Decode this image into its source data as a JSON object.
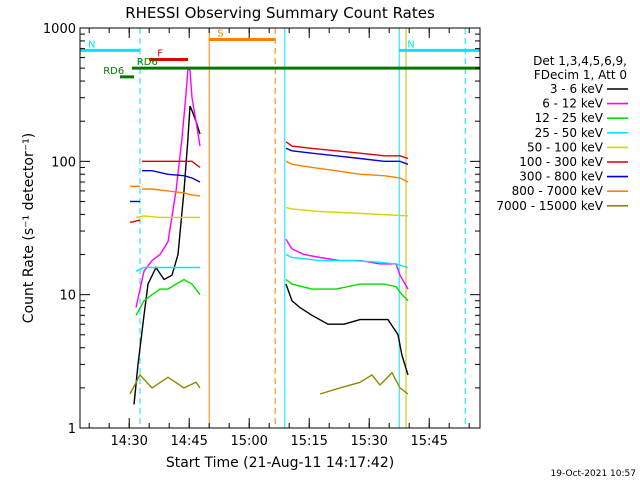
{
  "chart_data": {
    "type": "line",
    "title": "RHESSI Observing Summary Count Rates",
    "xlabel": "Start Time (21-Aug-11 14:17:42)",
    "ylabel": "Count Rate (s⁻¹ detector⁻¹)",
    "y_scale": "log",
    "ylim": [
      1,
      1000
    ],
    "xlim_minutes": [
      0,
      100
    ],
    "x_ticks": [
      {
        "t": 12.3,
        "label": "14:30"
      },
      {
        "t": 27.3,
        "label": "14:45"
      },
      {
        "t": 42.3,
        "label": "15:00"
      },
      {
        "t": 57.3,
        "label": "15:15"
      },
      {
        "t": 72.3,
        "label": "15:30"
      },
      {
        "t": 87.3,
        "label": "15:45"
      }
    ],
    "y_ticks": [
      {
        "v": 1,
        "label": "1"
      },
      {
        "v": 10,
        "label": "10"
      },
      {
        "v": 100,
        "label": "100"
      },
      {
        "v": 1000,
        "label": "1000"
      }
    ],
    "legend": {
      "position": "right",
      "header": [
        "Det 1,3,4,5,6,9,",
        "FDecim 1, Att 0"
      ],
      "entries": [
        {
          "label": "3 - 6 keV",
          "color": "#000000"
        },
        {
          "label": "6 - 12 keV",
          "color": "#ff00ff"
        },
        {
          "label": "12 - 25 keV",
          "color": "#00dd00"
        },
        {
          "label": "25 - 50 keV",
          "color": "#00e5ff"
        },
        {
          "label": "50 - 100 keV",
          "color": "#d4d400"
        },
        {
          "label": "100 - 300 keV",
          "color": "#e00000"
        },
        {
          "label": "300 - 800 keV",
          "color": "#0000e0"
        },
        {
          "label": "800 - 7000 keV",
          "color": "#ff8000"
        },
        {
          "label": "7000 - 15000 keV",
          "color": "#8b8b00"
        }
      ]
    },
    "series_segments": [
      {
        "name": "3 - 6 keV",
        "color": "#000000",
        "segments": [
          [
            [
              13.5,
              1.5
            ],
            [
              14.5,
              3
            ],
            [
              16,
              7
            ],
            [
              17,
              12
            ],
            [
              19,
              16
            ],
            [
              21,
              13
            ],
            [
              23,
              14
            ],
            [
              24.5,
              20
            ],
            [
              26,
              60
            ],
            [
              27,
              150
            ],
            [
              27.5,
              260
            ],
            [
              28,
              240
            ],
            [
              29,
              200
            ],
            [
              30,
              160
            ]
          ],
          [
            [
              51.5,
              12
            ],
            [
              53,
              9
            ],
            [
              55,
              8
            ],
            [
              58,
              7
            ],
            [
              62,
              6
            ],
            [
              66,
              6
            ],
            [
              70,
              6.5
            ],
            [
              74,
              6.5
            ],
            [
              77,
              6.5
            ],
            [
              79.5,
              5
            ],
            [
              80.5,
              3.5
            ],
            [
              82,
              2.5
            ]
          ]
        ]
      },
      {
        "name": "6 - 12 keV",
        "color": "#ff00ff",
        "segments": [
          [
            [
              14,
              8
            ],
            [
              16,
              15
            ],
            [
              18,
              18
            ],
            [
              20,
              20
            ],
            [
              22,
              25
            ],
            [
              24,
              60
            ],
            [
              25.5,
              150
            ],
            [
              26.5,
              320
            ],
            [
              27,
              500
            ],
            [
              27.5,
              480
            ],
            [
              28,
              300
            ],
            [
              29,
              200
            ],
            [
              30,
              130
            ]
          ],
          [
            [
              51.5,
              26
            ],
            [
              53,
              22
            ],
            [
              56,
              20
            ],
            [
              60,
              19
            ],
            [
              65,
              18
            ],
            [
              70,
              18
            ],
            [
              75,
              17
            ],
            [
              79,
              17
            ],
            [
              80,
              14
            ],
            [
              82,
              11
            ]
          ]
        ]
      },
      {
        "name": "12 - 25 keV",
        "color": "#00dd00",
        "segments": [
          [
            [
              14,
              7
            ],
            [
              16,
              9
            ],
            [
              18,
              10
            ],
            [
              20,
              11
            ],
            [
              22,
              11
            ],
            [
              24,
              12
            ],
            [
              26,
              13
            ],
            [
              28,
              12
            ],
            [
              30,
              10
            ]
          ],
          [
            [
              51.5,
              13
            ],
            [
              53,
              12
            ],
            [
              58,
              11
            ],
            [
              64,
              11
            ],
            [
              70,
              12
            ],
            [
              76,
              12
            ],
            [
              79,
              11.5
            ],
            [
              80.5,
              10
            ],
            [
              82,
              9
            ]
          ]
        ]
      },
      {
        "name": "25 - 50 keV",
        "color": "#00e5ff",
        "segments": [
          [
            [
              14,
              15
            ],
            [
              16,
              16
            ],
            [
              18,
              16
            ],
            [
              22,
              16
            ],
            [
              26,
              16
            ],
            [
              30,
              16
            ]
          ],
          [
            [
              51.5,
              20
            ],
            [
              53,
              19
            ],
            [
              60,
              18
            ],
            [
              68,
              18
            ],
            [
              75,
              17.5
            ],
            [
              79,
              17
            ],
            [
              82,
              16
            ]
          ]
        ]
      },
      {
        "name": "50 - 100 keV",
        "color": "#d4d400",
        "segments": [
          [
            [
              14,
              38
            ],
            [
              16,
              39
            ],
            [
              20,
              38
            ],
            [
              24,
              38
            ],
            [
              28,
              38
            ],
            [
              30,
              38
            ]
          ],
          [
            [
              51.5,
              45
            ],
            [
              53,
              44
            ],
            [
              60,
              42
            ],
            [
              68,
              41
            ],
            [
              75,
              40
            ],
            [
              82,
              39
            ]
          ]
        ]
      },
      {
        "name": "100 - 300 keV",
        "color": "#e00000",
        "segments": [
          [
            [
              12.5,
              35
            ],
            [
              13,
              35
            ],
            [
              14.5,
              36
            ],
            [
              15,
              36
            ]
          ],
          [
            [
              15.5,
              100
            ],
            [
              18,
              100
            ],
            [
              22,
              100
            ],
            [
              26,
              100
            ],
            [
              28,
              100
            ],
            [
              30,
              90
            ]
          ],
          [
            [
              51.5,
              140
            ],
            [
              53,
              130
            ],
            [
              58,
              125
            ],
            [
              64,
              120
            ],
            [
              70,
              115
            ],
            [
              76,
              110
            ],
            [
              80,
              110
            ],
            [
              82,
              105
            ]
          ]
        ]
      },
      {
        "name": "300 - 800 keV",
        "color": "#0000e0",
        "segments": [
          [
            [
              12.5,
              50
            ],
            [
              13,
              50
            ],
            [
              14.5,
              50
            ],
            [
              15,
              50
            ]
          ],
          [
            [
              15.5,
              85
            ],
            [
              18,
              85
            ],
            [
              22,
              80
            ],
            [
              26,
              78
            ],
            [
              28,
              75
            ],
            [
              30,
              70
            ]
          ],
          [
            [
              51.5,
              125
            ],
            [
              53,
              120
            ],
            [
              58,
              115
            ],
            [
              64,
              110
            ],
            [
              70,
              105
            ],
            [
              76,
              100
            ],
            [
              80,
              100
            ],
            [
              82,
              95
            ]
          ]
        ]
      },
      {
        "name": "800 - 7000 keV",
        "color": "#ff8000",
        "segments": [
          [
            [
              12.5,
              65
            ],
            [
              13,
              65
            ],
            [
              14.5,
              65
            ],
            [
              15,
              65
            ]
          ],
          [
            [
              15.5,
              62
            ],
            [
              18,
              62
            ],
            [
              22,
              60
            ],
            [
              26,
              58
            ],
            [
              28,
              56
            ],
            [
              30,
              55
            ]
          ],
          [
            [
              51.5,
              100
            ],
            [
              53,
              95
            ],
            [
              58,
              90
            ],
            [
              64,
              85
            ],
            [
              70,
              80
            ],
            [
              76,
              78
            ],
            [
              80,
              75
            ],
            [
              82,
              70
            ]
          ]
        ]
      },
      {
        "name": "7000 - 15000 keV",
        "color": "#8b8b00",
        "segments": [
          [
            [
              12.5,
              1.8
            ],
            [
              15,
              2.5
            ],
            [
              18,
              2
            ],
            [
              22,
              2.4
            ],
            [
              26,
              2
            ],
            [
              29,
              2.2
            ],
            [
              30,
              2
            ]
          ],
          [
            [
              60,
              1.8
            ],
            [
              65,
              2
            ],
            [
              70,
              2.2
            ],
            [
              73,
              2.5
            ],
            [
              75,
              2.1
            ],
            [
              78,
              2.6
            ],
            [
              80,
              2
            ],
            [
              82,
              1.8
            ]
          ]
        ]
      }
    ],
    "mode_bars": [
      {
        "label": "N",
        "color": "#00e5ff",
        "t0": 0,
        "t1": 15.0,
        "value": 680
      },
      {
        "label": "N",
        "color": "#00e5ff",
        "t0": 79.8,
        "t1": 100,
        "value": 680
      },
      {
        "label": "F",
        "color": "#e00000",
        "t0": 17.3,
        "t1": 27.0,
        "value": 580
      },
      {
        "label": "S",
        "color": "#ff8000",
        "t0": 32.3,
        "t1": 48.8,
        "value": 820
      },
      {
        "label": "RD6",
        "color": "#007700",
        "t0": 13.0,
        "t1": 100,
        "value": 500,
        "label_t": 14.2
      },
      {
        "label": "RD6",
        "color": "#007700",
        "t0": 10.0,
        "t1": 13.5,
        "value": 430,
        "label_t": 5.8
      }
    ],
    "vertical_markers": [
      {
        "t": 0.0,
        "color": "#00e5ff",
        "style": "solid"
      },
      {
        "t": 15.0,
        "color": "#00e5ff",
        "style": "dashed"
      },
      {
        "t": 32.3,
        "color": "#ff8000",
        "style": "solid"
      },
      {
        "t": 48.8,
        "color": "#ff8000",
        "style": "dashed"
      },
      {
        "t": 51.2,
        "color": "#00e5ff",
        "style": "solid"
      },
      {
        "t": 79.8,
        "color": "#00e5ff",
        "style": "solid"
      },
      {
        "t": 81.5,
        "color": "#c8b400",
        "style": "solid"
      },
      {
        "t": 96.3,
        "color": "#00e5ff",
        "style": "dashed"
      }
    ],
    "footer_stamp": "19-Oct-2021 10:57"
  }
}
